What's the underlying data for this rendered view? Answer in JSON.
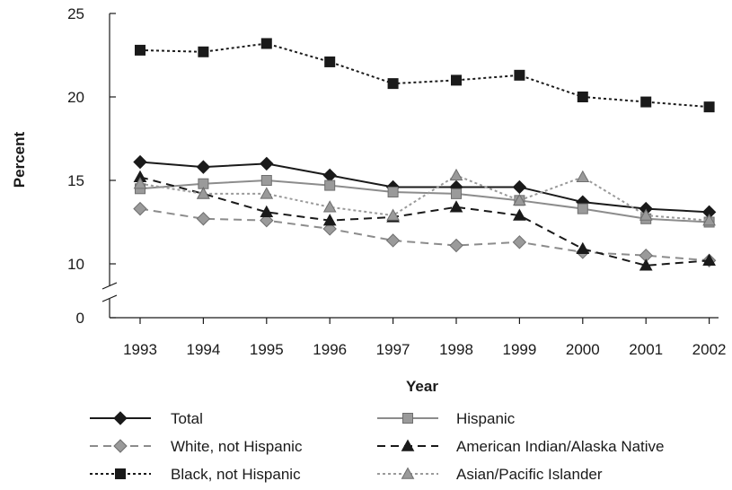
{
  "chart_data": {
    "type": "line",
    "xlabel": "Year",
    "ylabel": "Percent",
    "categories": [
      "1993",
      "1994",
      "1995",
      "1996",
      "1997",
      "1998",
      "1999",
      "2000",
      "2001",
      "2002"
    ],
    "ylim": [
      10,
      25
    ],
    "yticks": [
      "0",
      "10",
      "15",
      "20",
      "25"
    ],
    "y_axis_break": true,
    "grid": false,
    "legend_position": "bottom",
    "series": [
      {
        "name": "Total",
        "values": [
          16.1,
          15.8,
          16.0,
          15.3,
          14.6,
          14.6,
          14.6,
          13.7,
          13.3,
          13.1
        ],
        "color": "#1a1a1a",
        "dash": "solid",
        "marker": "diamond",
        "marker_fill": "#1a1a1a"
      },
      {
        "name": "White, not Hispanic",
        "values": [
          13.3,
          12.7,
          12.6,
          12.1,
          11.4,
          11.1,
          11.3,
          10.7,
          10.5,
          10.2
        ],
        "color": "#8c8c8c",
        "dash": "dashed",
        "marker": "diamond",
        "marker_fill": "#9a9a9a"
      },
      {
        "name": "Black, not Hispanic",
        "values": [
          22.8,
          22.7,
          23.2,
          22.1,
          20.8,
          21.0,
          21.3,
          20.0,
          19.7,
          19.4
        ],
        "color": "#1a1a1a",
        "dash": "dotted",
        "marker": "square",
        "marker_fill": "#1a1a1a"
      },
      {
        "name": "Hispanic",
        "values": [
          14.5,
          14.8,
          15.0,
          14.7,
          14.3,
          14.2,
          13.8,
          13.3,
          12.7,
          12.5
        ],
        "color": "#8c8c8c",
        "dash": "solid",
        "marker": "square",
        "marker_fill": "#9a9a9a"
      },
      {
        "name": "American Indian/Alaska Native",
        "values": [
          15.2,
          14.2,
          13.1,
          12.6,
          12.8,
          13.4,
          12.9,
          10.9,
          9.9,
          10.2
        ],
        "color": "#1a1a1a",
        "dash": "dashed",
        "marker": "triangle",
        "marker_fill": "#1a1a1a"
      },
      {
        "name": "Asian/Pacific Islander",
        "values": [
          14.8,
          14.2,
          14.2,
          13.4,
          12.9,
          15.3,
          13.8,
          15.2,
          12.9,
          12.6
        ],
        "color": "#9a9a9a",
        "dash": "dotted",
        "marker": "triangle",
        "marker_fill": "#9a9a9a"
      }
    ]
  }
}
